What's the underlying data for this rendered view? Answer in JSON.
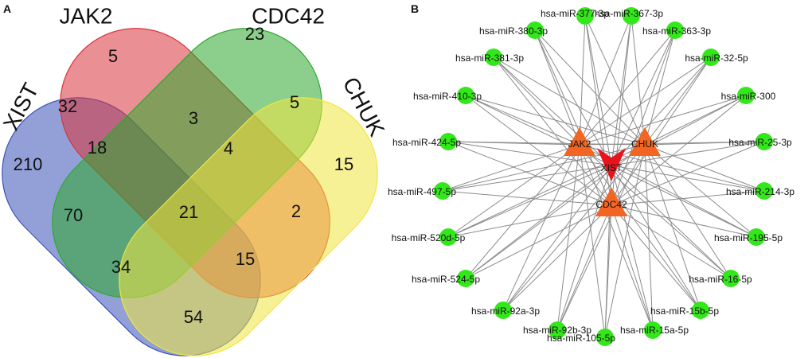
{
  "panel_a": {
    "label": "A",
    "sets": [
      {
        "name": "XIST",
        "color": "#3a52b8"
      },
      {
        "name": "JAK2",
        "color": "#d8343c"
      },
      {
        "name": "CDC42",
        "color": "#2ea82e"
      },
      {
        "name": "CHUK",
        "color": "#f0e640"
      }
    ],
    "regions": [
      {
        "sets": "JAK2",
        "value": "5"
      },
      {
        "sets": "CDC42",
        "value": "23"
      },
      {
        "sets": "XIST",
        "value": "210"
      },
      {
        "sets": "CHUK",
        "value": "15"
      },
      {
        "sets": "XIST+JAK2",
        "value": "32"
      },
      {
        "sets": "JAK2+CDC42",
        "value": "3"
      },
      {
        "sets": "CDC42+CHUK",
        "value": "5"
      },
      {
        "sets": "XIST+JAK2+CDC42",
        "value": "18"
      },
      {
        "sets": "JAK2+CDC42+CHUK",
        "value": "4"
      },
      {
        "sets": "XIST+CDC42",
        "value": "70"
      },
      {
        "sets": "all",
        "value": "21"
      },
      {
        "sets": "JAK2+CHUK",
        "value": "2"
      },
      {
        "sets": "XIST+CDC42+CHUK",
        "value": "34"
      },
      {
        "sets": "XIST+JAK2+CHUK",
        "value": "15"
      },
      {
        "sets": "XIST+CHUK",
        "value": "54"
      }
    ]
  },
  "panel_b": {
    "label": "B",
    "hub_color": "#f26522",
    "center_color": "#e8141c",
    "mirna_color": "#33e81a",
    "edge_color": "#8c8c8c",
    "hubs": [
      "JAK2",
      "CHUK",
      "CDC42"
    ],
    "center": "XIST",
    "mirnas": [
      "hsa-miR-377-3p",
      "hsa-miR-367-3p",
      "hsa-miR-380-3p",
      "hsa-miR-363-3p",
      "hsa-miR-381-3p",
      "hsa-miR-32-5p",
      "hsa-miR-410-3p",
      "hsa-miR-300",
      "hsa-miR-424-5p",
      "hsa-miR-25-3p",
      "hsa-miR-497-5p",
      "hsa-miR-214-3p",
      "hsa-miR-520d-5p",
      "hsa-miR-195-5p",
      "hsa-miR-524-5p",
      "hsa-miR-16-5p",
      "hsa-miR-92a-3p",
      "hsa-miR-15b-5p",
      "hsa-miR-92b-3p",
      "hsa-miR-15a-5p",
      "hsa-miR-105-5p"
    ]
  }
}
